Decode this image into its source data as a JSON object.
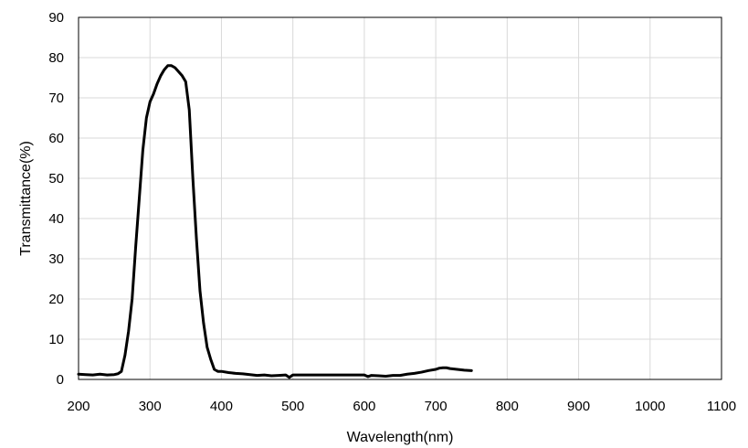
{
  "chart_data": {
    "type": "line",
    "title": "",
    "xlabel": "Wavelength(nm)",
    "ylabel": "Transmittance(%)",
    "xlim": [
      200,
      1100
    ],
    "ylim": [
      0,
      90
    ],
    "xticks": [
      200,
      300,
      400,
      500,
      600,
      700,
      800,
      900,
      1000,
      1100
    ],
    "yticks": [
      0,
      10,
      20,
      30,
      40,
      50,
      60,
      70,
      80,
      90
    ],
    "grid": true,
    "legend": "none",
    "line_color": "#000000",
    "grid_color": "#d9d9d9",
    "series": [
      {
        "x": [
          200,
          210,
          220,
          230,
          240,
          250,
          255,
          260,
          265,
          270,
          275,
          280,
          285,
          290,
          295,
          300,
          305,
          310,
          315,
          320,
          325,
          330,
          335,
          340,
          345,
          350,
          355,
          360,
          365,
          370,
          375,
          380,
          385,
          390,
          395,
          400,
          410,
          420,
          430,
          440,
          450,
          460,
          470,
          480,
          490,
          495,
          500,
          510,
          520,
          540,
          560,
          580,
          590,
          600,
          605,
          610,
          620,
          630,
          640,
          650,
          660,
          670,
          680,
          690,
          700,
          705,
          710,
          715,
          720,
          730,
          740,
          750
        ],
        "y": [
          1.3,
          1.2,
          1.1,
          1.3,
          1.1,
          1.2,
          1.4,
          2.0,
          6.0,
          12.0,
          20.0,
          33.0,
          45.0,
          57.0,
          65.0,
          69.0,
          71.0,
          73.5,
          75.5,
          77.0,
          78.0,
          78.0,
          77.5,
          76.5,
          75.5,
          74.0,
          67.0,
          50.0,
          35.0,
          22.0,
          14.0,
          8.0,
          5.0,
          2.5,
          2.0,
          2.0,
          1.7,
          1.5,
          1.4,
          1.2,
          1.0,
          1.1,
          0.9,
          1.0,
          1.1,
          0.5,
          1.1,
          1.1,
          1.1,
          1.1,
          1.1,
          1.1,
          1.1,
          1.1,
          0.7,
          1.0,
          0.9,
          0.8,
          1.0,
          1.0,
          1.3,
          1.5,
          1.8,
          2.2,
          2.5,
          2.8,
          2.9,
          2.9,
          2.7,
          2.5,
          2.3,
          2.2
        ]
      }
    ]
  }
}
